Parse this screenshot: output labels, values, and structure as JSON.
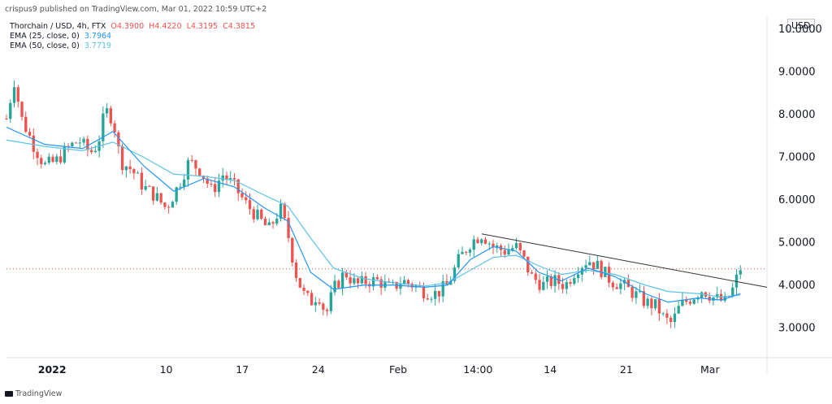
{
  "header": {
    "publisher_line": "crispus9 published on TradingView.com, Mar 01, 2022 10:59 UTC+2"
  },
  "legend": {
    "symbol_line": "Thorchain / USD, 4h, FTX",
    "open": "O4.3900",
    "high": "H4.4220",
    "low": "L4.3195",
    "close": "C4.3815",
    "ema25_label": "EMA (25, close, 0)",
    "ema25_value": "3.7964",
    "ema50_label": "EMA (50, close, 0)",
    "ema50_value": "3.7719"
  },
  "currency_badge": "USD",
  "footer": {
    "brand": "TradingView"
  },
  "colors": {
    "up": "#26a69a",
    "down": "#ef5350",
    "ema25": "#2196f3",
    "ema50": "#5ec2e6",
    "trendline": "#333333",
    "price_line": "#ef5350"
  },
  "chart_data": {
    "type": "candlestick",
    "x_ticks": [
      "2022",
      "10",
      "17",
      "24",
      "Feb",
      "14:00",
      "14",
      "21",
      "Mar"
    ],
    "y_ticks": [
      "3.0000",
      "4.0000",
      "5.0000",
      "6.0000",
      "7.0000",
      "8.0000",
      "9.0000",
      "10.0000"
    ],
    "ylim": [
      2.3,
      10.3
    ],
    "x_tick_positions": [
      0.06,
      0.21,
      0.31,
      0.41,
      0.515,
      0.62,
      0.715,
      0.815,
      0.925
    ],
    "close_path": [
      [
        0.0,
        7.9
      ],
      [
        0.01,
        8.8
      ],
      [
        0.02,
        7.9
      ],
      [
        0.035,
        7.3
      ],
      [
        0.05,
        6.8
      ],
      [
        0.065,
        6.9
      ],
      [
        0.08,
        7.2
      ],
      [
        0.095,
        7.4
      ],
      [
        0.11,
        7.1
      ],
      [
        0.12,
        7.3
      ],
      [
        0.13,
        8.1
      ],
      [
        0.14,
        7.9
      ],
      [
        0.15,
        6.9
      ],
      [
        0.165,
        6.7
      ],
      [
        0.18,
        6.3
      ],
      [
        0.195,
        6.1
      ],
      [
        0.21,
        5.8
      ],
      [
        0.225,
        6.3
      ],
      [
        0.24,
        6.9
      ],
      [
        0.255,
        6.7
      ],
      [
        0.27,
        6.2
      ],
      [
        0.285,
        6.6
      ],
      [
        0.3,
        6.3
      ],
      [
        0.315,
        5.9
      ],
      [
        0.33,
        5.6
      ],
      [
        0.345,
        5.3
      ],
      [
        0.36,
        5.8
      ],
      [
        0.37,
        5.2
      ],
      [
        0.38,
        4.3
      ],
      [
        0.39,
        3.8
      ],
      [
        0.4,
        3.6
      ],
      [
        0.41,
        3.8
      ],
      [
        0.42,
        3.3
      ],
      [
        0.43,
        3.9
      ],
      [
        0.445,
        4.3
      ],
      [
        0.46,
        4.0
      ],
      [
        0.475,
        4.1
      ],
      [
        0.49,
        4.1
      ],
      [
        0.505,
        3.9
      ],
      [
        0.52,
        4.1
      ],
      [
        0.535,
        4.0
      ],
      [
        0.55,
        3.85
      ],
      [
        0.565,
        3.8
      ],
      [
        0.58,
        4.0
      ],
      [
        0.595,
        4.6
      ],
      [
        0.61,
        5.0
      ],
      [
        0.625,
        5.2
      ],
      [
        0.64,
        4.9
      ],
      [
        0.655,
        4.8
      ],
      [
        0.67,
        4.9
      ],
      [
        0.68,
        4.6
      ],
      [
        0.69,
        4.2
      ],
      [
        0.705,
        4.0
      ],
      [
        0.72,
        4.1
      ],
      [
        0.735,
        4.0
      ],
      [
        0.75,
        4.4
      ],
      [
        0.765,
        4.6
      ],
      [
        0.78,
        4.4
      ],
      [
        0.795,
        4.1
      ],
      [
        0.81,
        4.0
      ],
      [
        0.825,
        3.8
      ],
      [
        0.84,
        3.6
      ],
      [
        0.855,
        3.5
      ],
      [
        0.865,
        3.2
      ],
      [
        0.875,
        3.1
      ],
      [
        0.885,
        3.5
      ],
      [
        0.9,
        3.7
      ],
      [
        0.915,
        3.9
      ],
      [
        0.93,
        3.7
      ],
      [
        0.945,
        3.6
      ],
      [
        0.955,
        3.9
      ],
      [
        0.965,
        4.4
      ]
    ],
    "ema25_path": [
      [
        0.0,
        7.7
      ],
      [
        0.05,
        7.3
      ],
      [
        0.1,
        7.2
      ],
      [
        0.14,
        7.6
      ],
      [
        0.18,
        6.8
      ],
      [
        0.22,
        6.2
      ],
      [
        0.26,
        6.5
      ],
      [
        0.3,
        6.3
      ],
      [
        0.34,
        5.8
      ],
      [
        0.37,
        5.5
      ],
      [
        0.4,
        4.3
      ],
      [
        0.43,
        3.9
      ],
      [
        0.47,
        4.0
      ],
      [
        0.51,
        4.0
      ],
      [
        0.55,
        3.95
      ],
      [
        0.58,
        4.0
      ],
      [
        0.61,
        4.6
      ],
      [
        0.64,
        4.9
      ],
      [
        0.67,
        4.8
      ],
      [
        0.7,
        4.3
      ],
      [
        0.73,
        4.1
      ],
      [
        0.765,
        4.4
      ],
      [
        0.8,
        4.2
      ],
      [
        0.84,
        3.8
      ],
      [
        0.87,
        3.6
      ],
      [
        0.91,
        3.7
      ],
      [
        0.94,
        3.65
      ],
      [
        0.965,
        3.8
      ]
    ],
    "ema50_path": [
      [
        0.0,
        7.4
      ],
      [
        0.05,
        7.25
      ],
      [
        0.1,
        7.15
      ],
      [
        0.14,
        7.35
      ],
      [
        0.18,
        7.0
      ],
      [
        0.22,
        6.6
      ],
      [
        0.26,
        6.55
      ],
      [
        0.3,
        6.45
      ],
      [
        0.34,
        6.1
      ],
      [
        0.37,
        5.85
      ],
      [
        0.4,
        5.1
      ],
      [
        0.43,
        4.4
      ],
      [
        0.47,
        4.15
      ],
      [
        0.51,
        4.05
      ],
      [
        0.55,
        3.98
      ],
      [
        0.58,
        4.05
      ],
      [
        0.61,
        4.35
      ],
      [
        0.64,
        4.65
      ],
      [
        0.67,
        4.7
      ],
      [
        0.7,
        4.45
      ],
      [
        0.73,
        4.25
      ],
      [
        0.765,
        4.35
      ],
      [
        0.8,
        4.25
      ],
      [
        0.84,
        4.0
      ],
      [
        0.87,
        3.85
      ],
      [
        0.91,
        3.8
      ],
      [
        0.94,
        3.72
      ],
      [
        0.965,
        3.77
      ]
    ],
    "trendline": [
      [
        0.625,
        5.2
      ],
      [
        1.0,
        3.95
      ]
    ],
    "last_price": 4.3815
  }
}
